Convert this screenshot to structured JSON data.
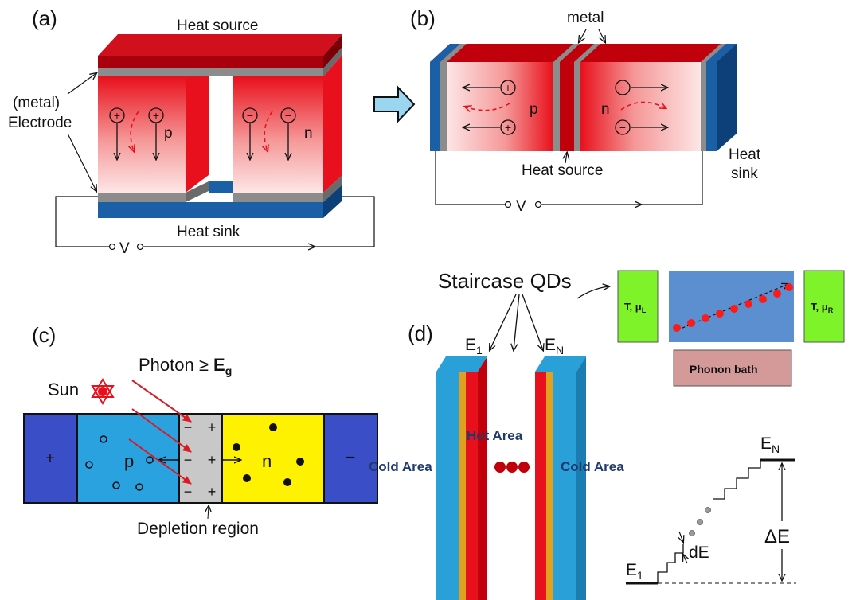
{
  "panel_a": {
    "tag": "(a)",
    "heat_source": "Heat source",
    "heat_sink": "Heat sink",
    "electrode_line1": "(metal)",
    "electrode_line2": "Electrode",
    "p_label": "p",
    "n_label": "n",
    "v_label": "V",
    "plus_sign": "+",
    "minus_sign": "−"
  },
  "panel_b": {
    "tag": "(b)",
    "metal": "metal",
    "heat_source": "Heat source",
    "heat_sink_line1": "Heat",
    "heat_sink_line2": "sink",
    "p_label": "p",
    "n_label": "n",
    "v_label": "V",
    "plus_sign": "+",
    "minus_sign": "−"
  },
  "panel_c": {
    "tag": "(c)",
    "sun": "Sun",
    "photon_prefix": "Photon ≥ ",
    "photon_e": "E",
    "photon_sub": "g",
    "p_label": "p",
    "n_label": "n",
    "left_terminal": "+",
    "right_terminal": "−",
    "depletion": "Depletion region",
    "plus_sign": "+",
    "minus_sign": "−"
  },
  "panel_d": {
    "tag": "(d)",
    "staircase": "Staircase QDs",
    "e1": "E",
    "e1_sub": "1",
    "en": "E",
    "en_sub": "N",
    "cold_left": "Cold Area",
    "hot": "Hot Area",
    "cold_right": "Cold Area",
    "left_reservoir": "T, μ",
    "left_sub": "L",
    "right_reservoir": "T, μ",
    "right_sub": "R",
    "phonon_bath": "Phonon bath",
    "stair_en": "E",
    "stair_en_sub": "N",
    "stair_e1": "E",
    "stair_e1_sub": "1",
    "de": "dE",
    "delta_e": "ΔE"
  },
  "colors": {
    "red_dark": "#c0000a",
    "red": "#e8101c",
    "pink_light": "#fbd9d9",
    "blue_sink": "#1b5fa6",
    "metal_gray": "#8c8c8c",
    "p_blue": "#2aa2e0",
    "n_yellow": "#fff200",
    "terminal_blue": "#3a4ec8",
    "dep_gray": "#c8c8c8",
    "qd_blue": "#2aa0d8",
    "qd_orange": "#e0a020",
    "reservoir_green": "#7ef32a",
    "bath_pink": "#d49a9a",
    "qd_panel_blue": "#5b8fd0",
    "dark_label": "#1f3a6e"
  }
}
